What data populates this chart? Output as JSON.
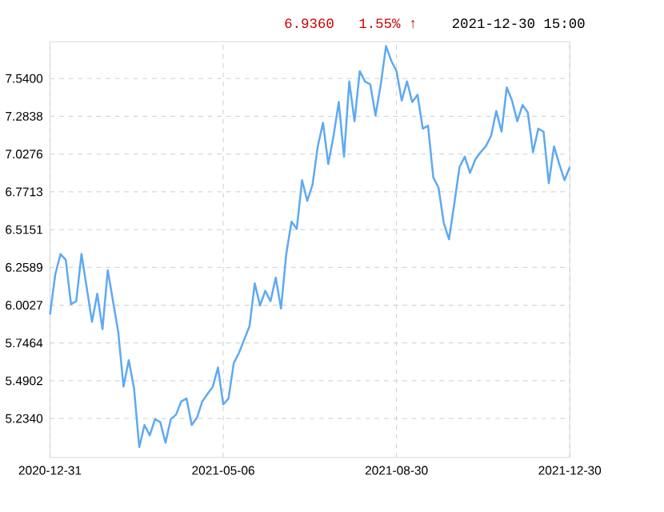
{
  "chart_data": {
    "type": "line",
    "annotations": [
      "6.9360",
      "1.55% ↑",
      "2021-12-30 15:00"
    ],
    "categories": [
      "2020-12-31",
      null,
      null,
      null,
      null,
      null,
      null,
      null,
      null,
      null,
      null,
      null,
      null,
      null,
      null,
      null,
      null,
      null,
      null,
      null,
      null,
      null,
      null,
      null,
      null,
      null,
      null,
      null,
      null,
      null,
      null,
      null,
      null,
      "2021-05-06",
      null,
      null,
      null,
      null,
      null,
      null,
      null,
      null,
      null,
      null,
      null,
      null,
      null,
      null,
      null,
      null,
      null,
      null,
      null,
      null,
      null,
      null,
      null,
      null,
      null,
      null,
      null,
      null,
      null,
      null,
      null,
      null,
      "2021-08-30",
      null,
      null,
      null,
      null,
      null,
      null,
      null,
      null,
      null,
      null,
      null,
      null,
      null,
      null,
      null,
      null,
      null,
      null,
      null,
      null,
      null,
      null,
      null,
      null,
      null,
      null,
      null,
      null,
      null,
      null,
      null,
      null,
      "2021-12-30"
    ],
    "series": [
      {
        "color": "#5eaaf2",
        "values": [
          5.94,
          6.21,
          6.35,
          6.31,
          6.01,
          6.03,
          6.35,
          6.12,
          5.89,
          6.08,
          5.84,
          6.24,
          6.03,
          5.82,
          5.45,
          5.63,
          5.44,
          5.04,
          5.19,
          5.12,
          5.23,
          5.21,
          5.07,
          5.23,
          5.26,
          5.35,
          5.37,
          5.19,
          5.24,
          5.35,
          5.4,
          5.45,
          5.58,
          5.33,
          5.37,
          5.61,
          5.68,
          5.77,
          5.86,
          6.15,
          6.0,
          6.1,
          6.03,
          6.19,
          5.98,
          6.35,
          6.57,
          6.52,
          6.85,
          6.71,
          6.82,
          7.08,
          7.24,
          6.96,
          7.15,
          7.38,
          7.01,
          7.52,
          7.25,
          7.59,
          7.52,
          7.5,
          7.29,
          7.5,
          7.76,
          7.66,
          7.59,
          7.39,
          7.52,
          7.38,
          7.43,
          7.2,
          7.22,
          6.87,
          6.8,
          6.56,
          6.45,
          6.69,
          6.94,
          7.01,
          6.9,
          6.99,
          7.04,
          7.08,
          7.15,
          7.32,
          7.18,
          7.48,
          7.39,
          7.25,
          7.36,
          7.31,
          7.04,
          7.2,
          7.18,
          6.83,
          7.08,
          6.96,
          6.85,
          6.94
        ]
      }
    ],
    "ylim": [
      4.97,
      7.79
    ],
    "yticks": [
      {
        "value": 5.234,
        "label": "5.2340"
      },
      {
        "value": 5.4902,
        "label": "5.4902"
      },
      {
        "value": 5.7464,
        "label": "5.7464"
      },
      {
        "value": 6.0027,
        "label": "6.0027"
      },
      {
        "value": 6.2589,
        "label": "6.2589"
      },
      {
        "value": 6.5151,
        "label": "6.5151"
      },
      {
        "value": 6.7713,
        "label": "6.7713"
      },
      {
        "value": 7.0276,
        "label": "7.0276"
      },
      {
        "value": 7.2838,
        "label": "7.2838"
      },
      {
        "value": 7.54,
        "label": "7.5400"
      }
    ],
    "grid": true
  }
}
